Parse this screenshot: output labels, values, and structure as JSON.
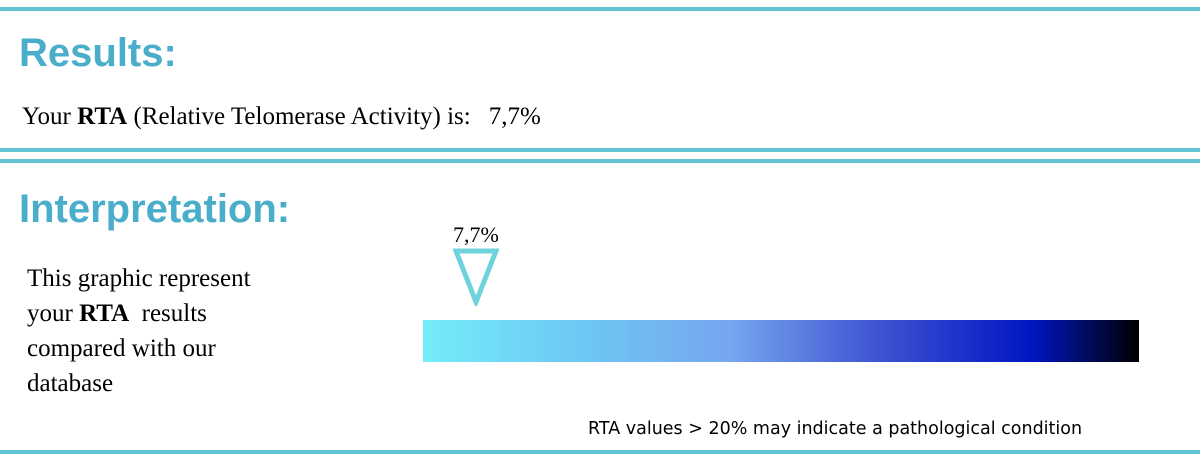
{
  "results": {
    "heading": "Results:",
    "line_prefix": "Your ",
    "line_bold": "RTA",
    "line_suffix": " (Relative Telomerase Activity) is:",
    "value": "7,7%"
  },
  "interpretation": {
    "heading": "Interpretation:",
    "description": {
      "line1": "This graphic represent",
      "line2_prefix": "your ",
      "line2_bold": "RTA",
      "line2_suffix": "  results",
      "line3": "compared with our",
      "line4": "database"
    },
    "gauge": {
      "marker_label": "7,7%",
      "marker_value_fraction": 0.074,
      "gradient_colors": [
        "#74edf9",
        "#6dc8f4",
        "#76a6ef",
        "#3f55d2",
        "#0016c2",
        "#000000"
      ],
      "marker_color": "#6fd3de"
    },
    "note": "RTA values > 20% may indicate a pathological condition"
  },
  "colors": {
    "rule": "#62c3d4",
    "heading": "#4aaecb"
  }
}
